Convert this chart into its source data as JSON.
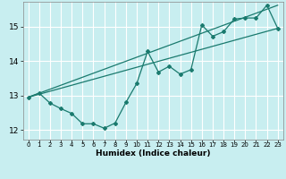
{
  "title": "",
  "xlabel": "Humidex (Indice chaleur)",
  "bg_color": "#c8eef0",
  "grid_color": "#ffffff",
  "line_color": "#1a7a6e",
  "xlim": [
    -0.5,
    23.5
  ],
  "ylim": [
    11.72,
    15.72
  ],
  "xticks": [
    0,
    1,
    2,
    3,
    4,
    5,
    6,
    7,
    8,
    9,
    10,
    11,
    12,
    13,
    14,
    15,
    16,
    17,
    18,
    19,
    20,
    21,
    22,
    23
  ],
  "yticks": [
    12,
    13,
    14,
    15
  ],
  "series1_x": [
    0,
    1,
    2,
    3,
    4,
    5,
    6,
    7,
    8,
    9,
    10,
    11,
    12,
    13,
    14,
    15,
    16,
    17,
    18,
    19,
    20,
    21,
    22,
    23
  ],
  "series1_y": [
    12.95,
    13.07,
    12.78,
    12.62,
    12.48,
    12.18,
    12.18,
    12.05,
    12.2,
    12.8,
    13.35,
    14.28,
    13.68,
    13.85,
    13.62,
    13.75,
    15.05,
    14.72,
    14.85,
    15.22,
    15.25,
    15.25,
    15.62,
    14.95
  ],
  "series2_x": [
    0,
    23
  ],
  "series2_y": [
    12.95,
    14.95
  ],
  "series3_x": [
    0,
    23
  ],
  "series3_y": [
    12.95,
    15.62
  ]
}
